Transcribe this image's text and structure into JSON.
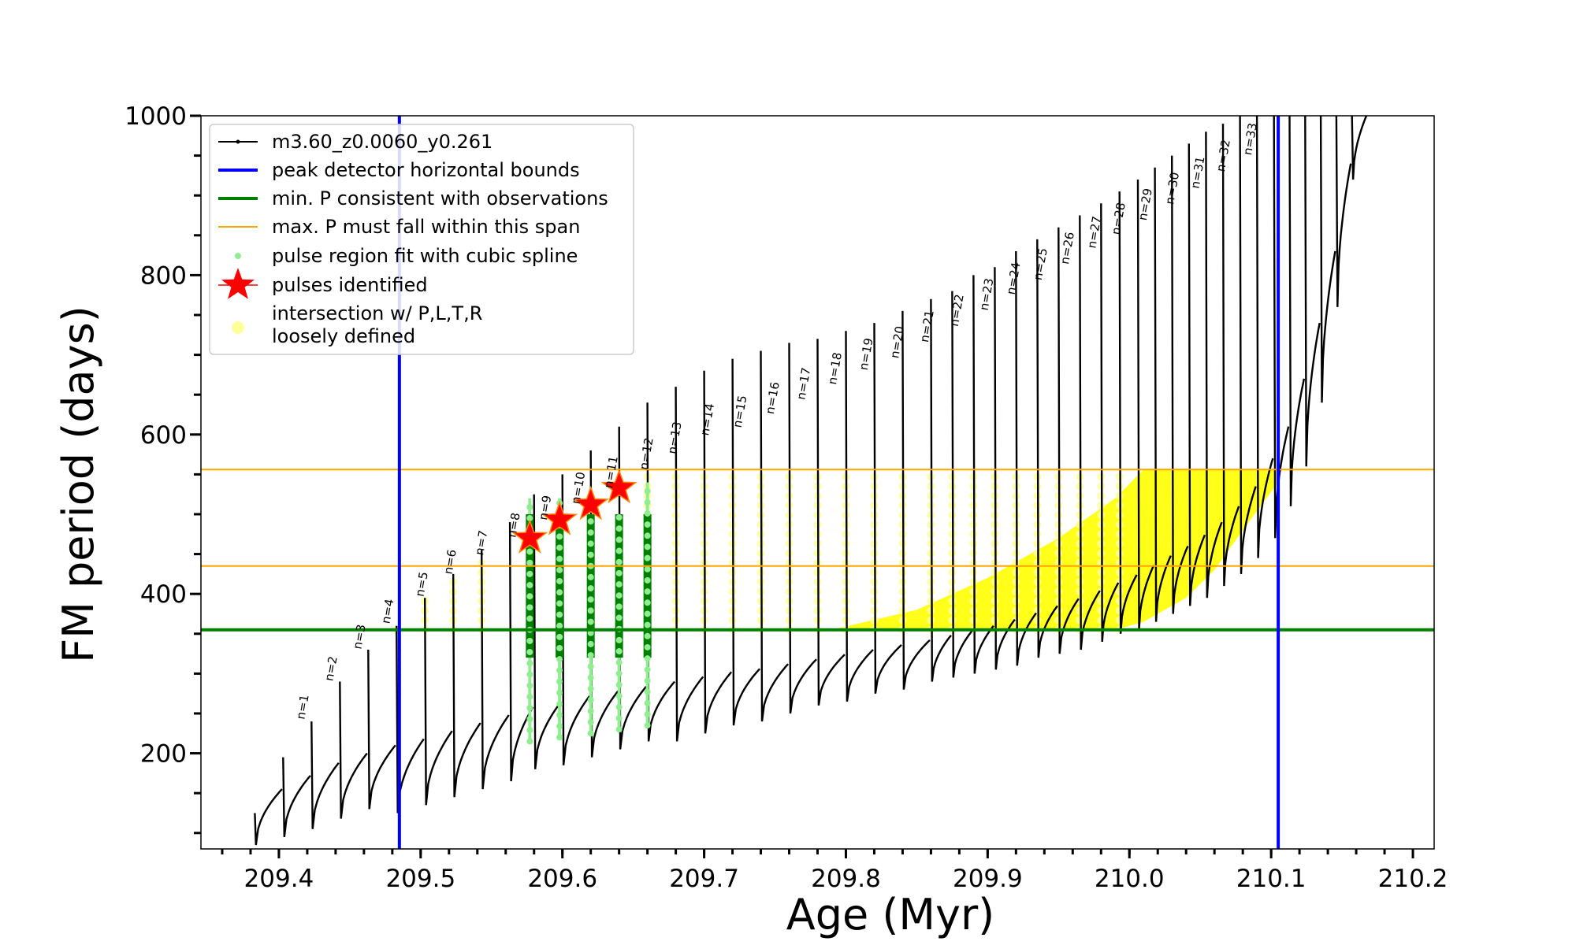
{
  "chart_data": {
    "type": "line",
    "xlabel": "Age (Myr)",
    "ylabel": "FM period (days)",
    "xlim": [
      209.345,
      210.215
    ],
    "ylim": [
      80,
      1000
    ],
    "xticks": [
      209.4,
      209.5,
      209.6,
      209.7,
      209.8,
      209.9,
      210.0,
      210.1,
      210.2
    ],
    "xtick_labels": [
      "209.4",
      "209.5",
      "209.6",
      "209.7",
      "209.8",
      "209.9",
      "210.0",
      "210.1",
      "210.2"
    ],
    "yticks": [
      200,
      400,
      600,
      800,
      1000
    ],
    "ytick_labels": [
      "200",
      "400",
      "600",
      "800",
      "1000"
    ],
    "legend_position": "upper-left",
    "legend": [
      {
        "label": "m3.60_z0.0060_y0.261",
        "color": "#000000",
        "marker": "line-dot"
      },
      {
        "label": "peak detector horizontal bounds",
        "color": "#0000ff",
        "marker": "line"
      },
      {
        "label": "min. P consistent with observations",
        "color": "#008000",
        "marker": "line"
      },
      {
        "label": "max. P must fall within this span",
        "color": "#ffa500",
        "marker": "thin-line"
      },
      {
        "label": "pulse region fit with cubic spline",
        "color": "#90ee90",
        "marker": "dot"
      },
      {
        "label": "pulses identified",
        "color": "#ff0000",
        "marker": "star"
      },
      {
        "label": "intersection w/ P,L,T,R",
        "label2": "loosely defined",
        "color": "#ffff99",
        "marker": "circle"
      }
    ],
    "peak_detector_bounds_x": [
      209.485,
      210.105
    ],
    "min_period_observed": 355,
    "max_period_span": [
      435,
      556
    ],
    "pulse_ages": [
      209.383,
      209.403,
      209.423,
      209.443,
      209.463,
      209.483,
      209.503,
      209.523,
      209.543,
      209.563,
      209.58,
      209.6,
      209.62,
      209.64,
      209.66,
      209.68,
      209.7,
      209.72,
      209.74,
      209.76,
      209.78,
      209.8,
      209.82,
      209.84,
      209.86,
      209.875,
      209.89,
      209.905,
      209.92,
      209.935,
      209.95,
      209.965,
      209.98,
      209.993,
      210.006,
      210.018,
      210.03,
      210.042,
      210.054,
      210.066,
      210.078,
      210.09,
      210.102,
      210.113,
      210.124,
      210.135,
      210.146,
      210.157
    ],
    "pulse_peak_periods": [
      125,
      195,
      240,
      290,
      330,
      360,
      395,
      425,
      455,
      490,
      525,
      550,
      580,
      610,
      640,
      660,
      680,
      695,
      705,
      715,
      720,
      730,
      740,
      755,
      770,
      780,
      800,
      810,
      830,
      845,
      860,
      875,
      890,
      905,
      920,
      935,
      950,
      965,
      980,
      990,
      1000,
      1000,
      1000,
      1000,
      1000,
      1000,
      1000,
      1000
    ],
    "pulse_min_periods": [
      85,
      95,
      105,
      118,
      130,
      125,
      135,
      145,
      155,
      165,
      180,
      185,
      195,
      205,
      215,
      215,
      225,
      235,
      240,
      250,
      260,
      265,
      275,
      280,
      290,
      295,
      300,
      305,
      310,
      320,
      325,
      330,
      340,
      350,
      355,
      365,
      375,
      385,
      395,
      410,
      425,
      445,
      470,
      510,
      560,
      640,
      760,
      920
    ],
    "pulse_end_periods": [
      155,
      172,
      188,
      200,
      210,
      218,
      228,
      238,
      248,
      258,
      265,
      272,
      278,
      284,
      290,
      296,
      302,
      306,
      312,
      318,
      324,
      330,
      336,
      342,
      348,
      354,
      360,
      368,
      376,
      385,
      394,
      404,
      414,
      424,
      436,
      448,
      460,
      474,
      490,
      510,
      535,
      570,
      610,
      670,
      740,
      830,
      940,
      1000
    ],
    "n_labels": [
      "n=1",
      "n=2",
      "n=3",
      "n=4",
      "n=5",
      "n=6",
      "n=7",
      "n=8",
      "n=9",
      "n=10",
      "n=11",
      "n=12",
      "n=13",
      "n=14",
      "n=15",
      "n=16",
      "n=17",
      "n=18",
      "n=19",
      "n=20",
      "n=21",
      "n=22",
      "n=23",
      "n=24",
      "n=25",
      "n=26",
      "n=27",
      "n=28",
      "n=29",
      "n=30",
      "n=31",
      "n=32",
      "n=33"
    ],
    "n_label_points": [
      [
        209.418,
        242
      ],
      [
        209.438,
        290
      ],
      [
        209.458,
        330
      ],
      [
        209.478,
        362
      ],
      [
        209.502,
        396
      ],
      [
        209.522,
        424
      ],
      [
        209.544,
        448
      ],
      [
        209.567,
        470
      ],
      [
        209.589,
        492
      ],
      [
        209.612,
        512
      ],
      [
        209.635,
        532
      ],
      [
        209.66,
        555
      ],
      [
        209.68,
        575
      ],
      [
        209.703,
        598
      ],
      [
        209.726,
        608
      ],
      [
        209.749,
        625
      ],
      [
        209.771,
        643
      ],
      [
        209.793,
        662
      ],
      [
        209.815,
        680
      ],
      [
        209.837,
        695
      ],
      [
        209.858,
        715
      ],
      [
        209.879,
        735
      ],
      [
        209.9,
        755
      ],
      [
        209.919,
        775
      ],
      [
        209.938,
        793
      ],
      [
        209.957,
        813
      ],
      [
        209.976,
        833
      ],
      [
        209.993,
        850
      ],
      [
        210.012,
        868
      ],
      [
        210.031,
        888
      ],
      [
        210.049,
        908
      ],
      [
        210.067,
        929
      ],
      [
        210.086,
        950
      ]
    ],
    "pulses_identified": [
      {
        "age": 209.577,
        "period": 470
      },
      {
        "age": 209.598,
        "period": 493
      },
      {
        "age": 209.62,
        "period": 512
      },
      {
        "age": 209.64,
        "period": 533
      }
    ],
    "spline_fit_regions": [
      {
        "age": 209.577,
        "pmin": 215,
        "pmax": 520
      },
      {
        "age": 209.598,
        "pmin": 220,
        "pmax": 520
      },
      {
        "age": 209.62,
        "pmin": 225,
        "pmax": 500
      },
      {
        "age": 209.64,
        "pmin": 230,
        "pmax": 500
      },
      {
        "age": 209.66,
        "pmin": 235,
        "pmax": 540
      }
    ],
    "intersection_columns": [
      {
        "age": 209.483,
        "pmin": 355,
        "pmax": 365
      },
      {
        "age": 209.503,
        "pmin": 355,
        "pmax": 395
      },
      {
        "age": 209.523,
        "pmin": 355,
        "pmax": 425
      },
      {
        "age": 209.543,
        "pmin": 355,
        "pmax": 450
      },
      {
        "age": 209.66,
        "pmin": 355,
        "pmax": 556
      },
      {
        "age": 209.68,
        "pmin": 355,
        "pmax": 556
      },
      {
        "age": 209.7,
        "pmin": 355,
        "pmax": 556
      },
      {
        "age": 209.72,
        "pmin": 355,
        "pmax": 556
      },
      {
        "age": 209.74,
        "pmin": 355,
        "pmax": 556
      },
      {
        "age": 209.76,
        "pmin": 355,
        "pmax": 556
      },
      {
        "age": 209.78,
        "pmin": 355,
        "pmax": 556
      },
      {
        "age": 209.8,
        "pmin": 355,
        "pmax": 556
      },
      {
        "age": 209.82,
        "pmin": 355,
        "pmax": 556
      },
      {
        "age": 209.84,
        "pmin": 355,
        "pmax": 556
      },
      {
        "age": 209.86,
        "pmin": 355,
        "pmax": 556
      },
      {
        "age": 209.875,
        "pmin": 355,
        "pmax": 556
      },
      {
        "age": 209.89,
        "pmin": 355,
        "pmax": 556
      },
      {
        "age": 209.905,
        "pmin": 355,
        "pmax": 556
      },
      {
        "age": 209.92,
        "pmin": 355,
        "pmax": 556
      },
      {
        "age": 209.935,
        "pmin": 355,
        "pmax": 556
      },
      {
        "age": 209.95,
        "pmin": 355,
        "pmax": 556
      },
      {
        "age": 209.965,
        "pmin": 355,
        "pmax": 556
      },
      {
        "age": 209.98,
        "pmin": 355,
        "pmax": 556
      },
      {
        "age": 209.993,
        "pmin": 355,
        "pmax": 556
      }
    ],
    "intersection_band": {
      "lower": [
        [
          209.79,
          355
        ],
        [
          209.99,
          355
        ],
        [
          210.01,
          365
        ],
        [
          210.04,
          395
        ],
        [
          210.06,
          430
        ],
        [
          210.08,
          480
        ],
        [
          210.105,
          540
        ]
      ],
      "upper": [
        [
          209.79,
          355
        ],
        [
          209.85,
          380
        ],
        [
          209.9,
          420
        ],
        [
          209.95,
          470
        ],
        [
          209.99,
          520
        ],
        [
          210.01,
          556
        ],
        [
          210.105,
          556
        ]
      ]
    }
  }
}
